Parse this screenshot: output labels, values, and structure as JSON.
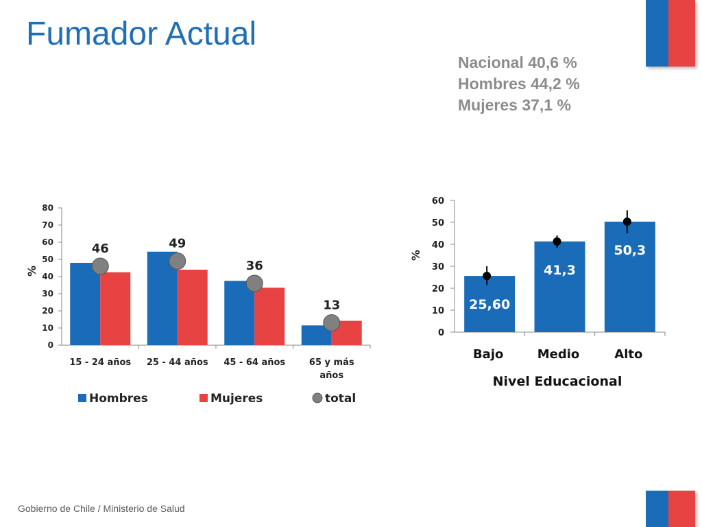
{
  "title": "Fumador Actual",
  "summary": [
    "Nacional 40,6  %",
    "Hombres 44,2  %",
    "Mujeres 37,1  %"
  ],
  "footer": "Gobierno de Chile / Ministerio de Salud",
  "colors": {
    "blue": "#1a6cb8",
    "red": "#e84343",
    "total": "#808080",
    "title": "#1f6fb5"
  },
  "chart_data": [
    {
      "type": "bar",
      "ylabel": "%",
      "ylim": [
        0,
        80
      ],
      "yticks": [
        "0",
        "10",
        "20",
        "30",
        "40",
        "50",
        "60",
        "70",
        "80"
      ],
      "categories": [
        [
          "15 - 24 años"
        ],
        [
          "25 - 44 años"
        ],
        [
          "45 - 64 años"
        ],
        [
          "65 y más",
          "años"
        ]
      ],
      "series": [
        {
          "name": "Hombres",
          "values": [
            48,
            54.5,
            37.5,
            11.5
          ]
        },
        {
          "name": "Mujeres",
          "values": [
            42.5,
            44,
            33.5,
            14.2
          ]
        }
      ],
      "total": {
        "name": "total",
        "values": [
          46,
          49,
          36,
          13
        ],
        "labels": [
          "46",
          "49",
          "36",
          "13"
        ]
      },
      "legend": [
        "Hombres",
        "Mujeres",
        "total"
      ]
    },
    {
      "type": "bar",
      "ylabel": "%",
      "xlabel": "Nivel Educacional",
      "ylim": [
        0,
        60
      ],
      "yticks": [
        "0",
        "10",
        "20",
        "30",
        "40",
        "50",
        "60"
      ],
      "categories": [
        "Bajo",
        "Medio",
        "Alto"
      ],
      "values": [
        25.6,
        41.3,
        50.3
      ],
      "labels": [
        "25,60",
        "41,3",
        "50,3"
      ],
      "error_bars": [
        [
          21.5,
          30
        ],
        [
          38.5,
          44
        ],
        [
          45,
          55.5
        ]
      ]
    }
  ]
}
